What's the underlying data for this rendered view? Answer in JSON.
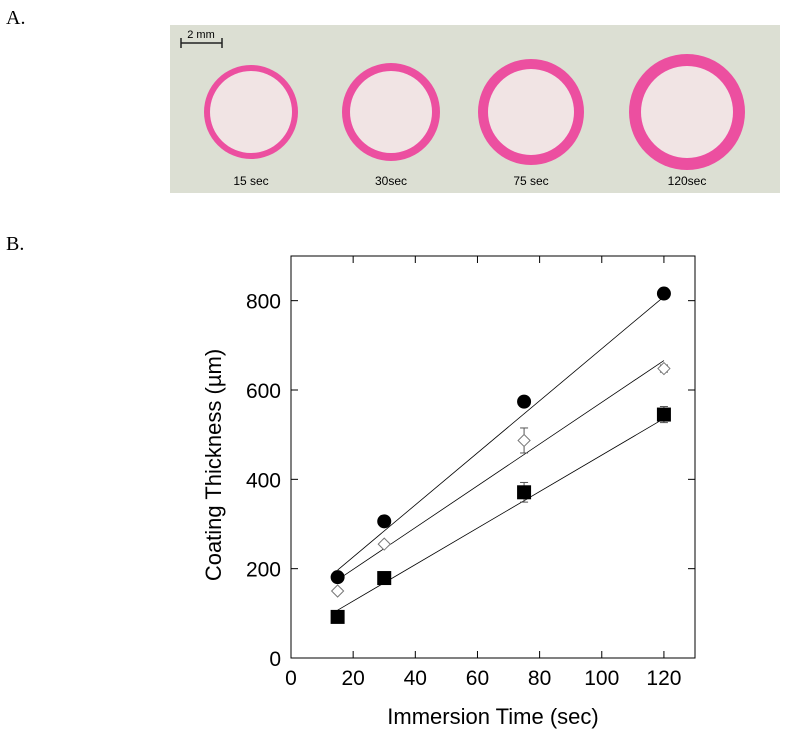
{
  "panel_a": {
    "label": "A.",
    "scale_bar": "2 mm",
    "samples": [
      "15 sec",
      "30sec",
      "75 sec",
      "120sec"
    ]
  },
  "chart_data": {
    "type": "scatter",
    "panel_label": "B.",
    "x_label": "Immersion Time (sec)",
    "y_label": "Coating Thickness (µm)",
    "xlim": [
      0,
      130
    ],
    "xticks": [
      0,
      20,
      40,
      60,
      80,
      100,
      120
    ],
    "ylim": [
      0,
      900
    ],
    "yticks": [
      0,
      200,
      400,
      600,
      800
    ],
    "series": [
      {
        "marker": "circle",
        "color": "#000000",
        "filled": true,
        "x": [
          15,
          30,
          75,
          120
        ],
        "values": [
          181,
          306,
          574,
          816
        ],
        "errors": [
          5,
          5,
          5,
          12
        ],
        "fit_x": [
          15,
          120
        ],
        "fit_values": [
          197,
          809
        ]
      },
      {
        "marker": "diamond",
        "color": "#000000",
        "filled": false,
        "x": [
          15,
          30,
          75,
          120
        ],
        "values": [
          150,
          255,
          487,
          648
        ],
        "errors": [
          5,
          5,
          28,
          8
        ],
        "fit_x": [
          15,
          120
        ],
        "fit_values": [
          175,
          666
        ]
      },
      {
        "marker": "square",
        "color": "#000000",
        "filled": true,
        "x": [
          15,
          30,
          75,
          120
        ],
        "values": [
          92,
          179,
          371,
          545
        ],
        "errors": [
          5,
          5,
          22,
          18
        ],
        "fit_x": [
          15,
          120
        ],
        "fit_values": [
          107,
          536
        ]
      }
    ]
  }
}
